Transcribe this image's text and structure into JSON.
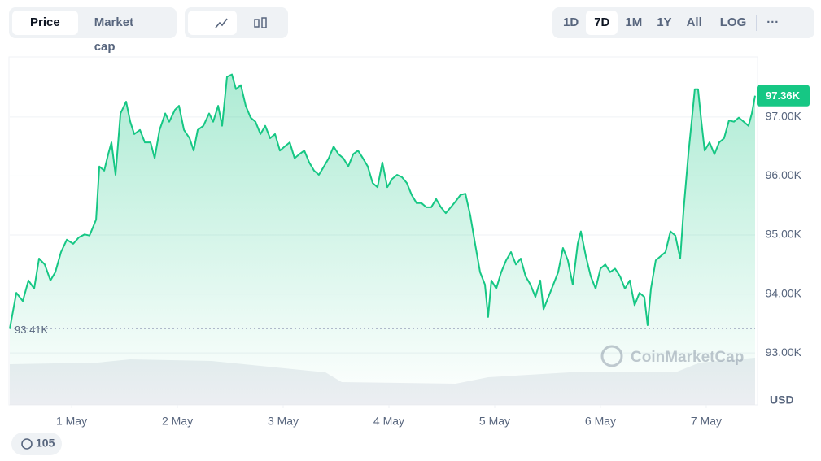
{
  "toolbar": {
    "views": [
      "Price",
      "Market cap"
    ],
    "ranges": [
      "1D",
      "7D",
      "1M",
      "1Y",
      "All",
      "LOG"
    ],
    "more": "···"
  },
  "comments": 105,
  "chart_data": {
    "type": "line",
    "x": [
      0.415,
      0.477,
      0.538,
      0.592,
      0.646,
      0.692,
      0.746,
      0.8,
      0.846,
      0.9,
      0.954,
      1.015,
      1.069,
      1.123,
      1.169,
      1.231,
      1.262,
      1.308,
      1.346,
      1.377,
      1.415,
      1.462,
      1.515,
      1.554,
      1.592,
      1.646,
      1.692,
      1.746,
      1.785,
      1.831,
      1.885,
      1.923,
      1.977,
      2.015,
      2.062,
      2.115,
      2.154,
      2.192,
      2.246,
      2.3,
      2.338,
      2.385,
      2.423,
      2.469,
      2.515,
      2.554,
      2.6,
      2.646,
      2.692,
      2.738,
      2.785,
      2.831,
      2.877,
      2.923,
      2.969,
      3.015,
      3.062,
      3.108,
      3.154,
      3.2,
      3.246,
      3.292,
      3.338,
      3.385,
      3.431,
      3.477,
      3.523,
      3.569,
      3.615,
      3.662,
      3.708,
      3.754,
      3.8,
      3.846,
      3.892,
      3.938,
      3.985,
      4.031,
      4.077,
      4.123,
      4.169,
      4.215,
      4.262,
      4.308,
      4.354,
      4.4,
      4.446,
      4.492,
      4.538,
      4.585,
      4.631,
      4.677,
      4.723,
      4.769,
      4.815,
      4.862,
      4.908,
      4.938,
      4.969,
      5.015,
      5.062,
      5.108,
      5.154,
      5.2,
      5.246,
      5.292,
      5.338,
      5.385,
      5.431,
      5.462,
      5.508,
      5.554,
      5.6,
      5.646,
      5.692,
      5.738,
      5.785,
      5.815,
      5.862,
      5.908,
      5.954,
      6.0,
      6.046,
      6.092,
      6.138,
      6.185,
      6.231,
      6.277,
      6.323,
      6.369,
      6.415,
      6.446,
      6.477,
      6.523,
      6.569,
      6.615,
      6.662,
      6.708,
      6.754,
      6.785,
      6.831,
      6.862,
      6.892,
      6.923,
      6.954,
      6.985,
      7.031,
      7.077,
      7.123,
      7.169,
      7.215,
      7.262,
      7.308,
      7.354,
      7.4,
      7.431,
      7.462
    ],
    "series": [
      {
        "name": "Price",
        "color": "#16c784",
        "values": [
          93.41,
          94.02,
          93.88,
          94.23,
          94.09,
          94.6,
          94.5,
          94.23,
          94.37,
          94.71,
          94.92,
          94.85,
          94.96,
          95.01,
          94.99,
          95.26,
          96.16,
          96.09,
          96.37,
          96.57,
          96.02,
          97.06,
          97.26,
          96.92,
          96.71,
          96.78,
          96.57,
          96.57,
          96.3,
          96.78,
          97.06,
          96.92,
          97.12,
          97.19,
          96.78,
          96.64,
          96.43,
          96.78,
          96.85,
          97.06,
          96.92,
          97.19,
          96.85,
          97.68,
          97.72,
          97.47,
          97.54,
          97.19,
          96.99,
          96.92,
          96.71,
          96.85,
          96.64,
          96.71,
          96.43,
          96.5,
          96.57,
          96.3,
          96.37,
          96.43,
          96.23,
          96.09,
          96.02,
          96.16,
          96.3,
          96.5,
          96.37,
          96.3,
          96.16,
          96.37,
          96.43,
          96.3,
          96.16,
          95.88,
          95.81,
          96.23,
          95.81,
          95.95,
          96.02,
          95.98,
          95.88,
          95.68,
          95.54,
          95.54,
          95.47,
          95.47,
          95.61,
          95.47,
          95.37,
          95.47,
          95.57,
          95.68,
          95.7,
          95.33,
          94.85,
          94.37,
          94.16,
          93.61,
          94.23,
          94.09,
          94.37,
          94.57,
          94.71,
          94.5,
          94.6,
          94.3,
          94.16,
          93.95,
          94.23,
          93.74,
          93.95,
          94.16,
          94.37,
          94.78,
          94.57,
          94.16,
          94.85,
          95.06,
          94.64,
          94.3,
          94.09,
          94.43,
          94.5,
          94.37,
          94.43,
          94.3,
          94.09,
          94.23,
          93.81,
          94.02,
          93.95,
          93.47,
          94.09,
          94.57,
          94.64,
          94.71,
          95.06,
          94.99,
          94.6,
          95.4,
          96.37,
          96.92,
          97.47,
          97.47,
          96.92,
          96.43,
          96.57,
          96.37,
          96.57,
          96.64,
          96.94,
          96.92,
          96.99,
          96.92,
          96.85,
          97.06,
          97.36
        ]
      }
    ],
    "xlim": [
      0.415,
      7.462
    ],
    "xticks": [
      {
        "value": 1,
        "label": "1 May"
      },
      {
        "value": 2,
        "label": "2 May"
      },
      {
        "value": 3,
        "label": "3 May"
      },
      {
        "value": 4,
        "label": "4 May"
      },
      {
        "value": 5,
        "label": "5 May"
      },
      {
        "value": 6,
        "label": "6 May"
      },
      {
        "value": 7,
        "label": "7 May"
      }
    ],
    "ylim": [
      92.12,
      97.99
    ],
    "yticks": [
      {
        "value": 93,
        "label": "93.00K"
      },
      {
        "value": 94,
        "label": "94.00K"
      },
      {
        "value": 95,
        "label": "95.00K"
      },
      {
        "value": 96,
        "label": "96.00K"
      },
      {
        "value": 97,
        "label": "97.00K"
      }
    ],
    "grid": true,
    "y_label": "USD",
    "current_price": {
      "value": 97.36,
      "label": "97.36K"
    },
    "reference": {
      "value": 93.41,
      "label": "93.41K"
    },
    "watermark": "CoinMarketCap"
  }
}
